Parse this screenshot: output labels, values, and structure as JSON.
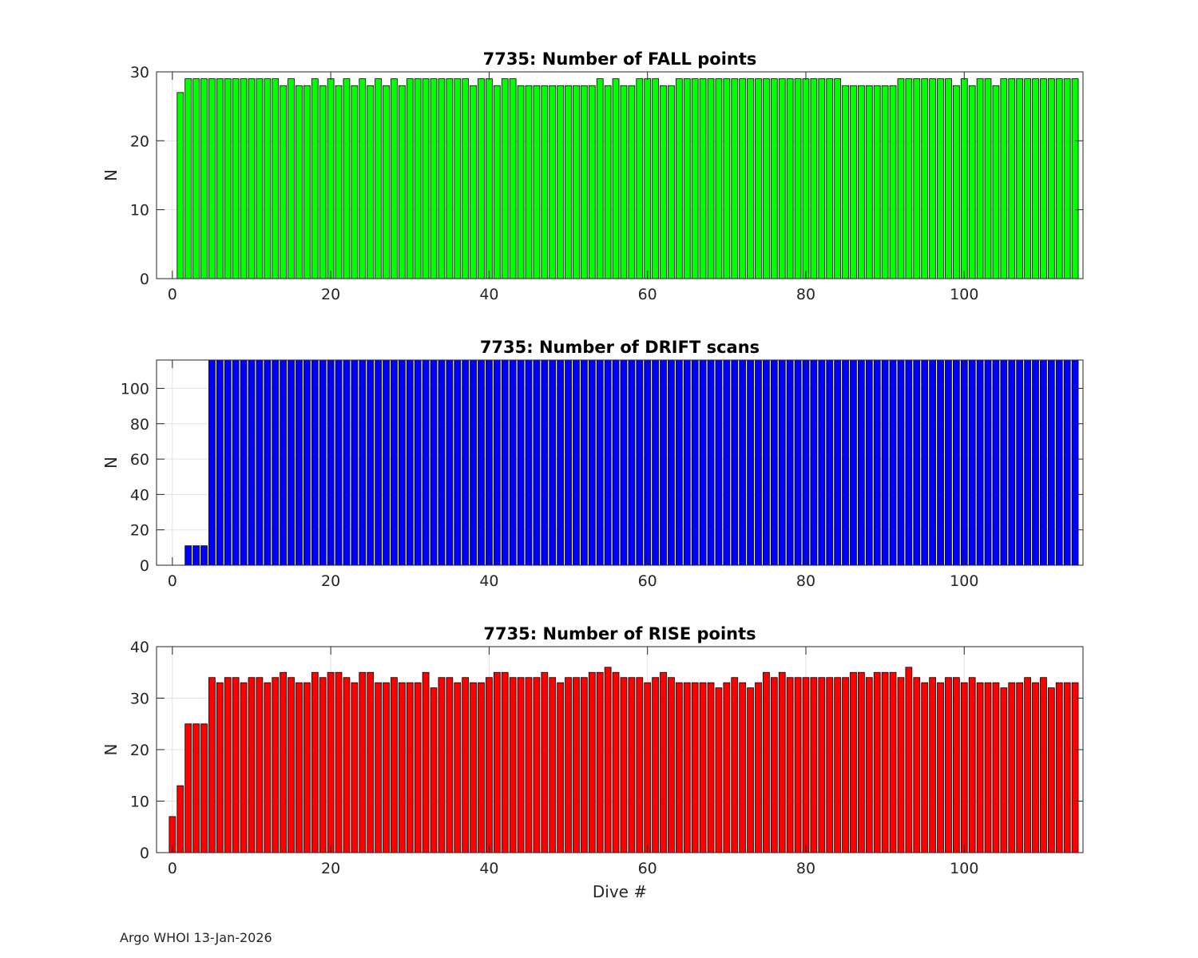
{
  "footer": "Argo WHOI 13-Jan-2026",
  "chart_data": [
    {
      "type": "bar",
      "title": "7735: Number of FALL points",
      "xlabel": "",
      "ylabel": "N",
      "color": "#00ff00",
      "xlim": [
        -2,
        115
      ],
      "ylim": [
        0,
        30
      ],
      "xticks": [
        0,
        20,
        40,
        60,
        80,
        100
      ],
      "yticks": [
        0,
        10,
        20,
        30
      ],
      "grid": true,
      "x": [
        1,
        2,
        3,
        4,
        5,
        6,
        7,
        8,
        9,
        10,
        11,
        12,
        13,
        14,
        15,
        16,
        17,
        18,
        19,
        20,
        21,
        22,
        23,
        24,
        25,
        26,
        27,
        28,
        29,
        30,
        31,
        32,
        33,
        34,
        35,
        36,
        37,
        38,
        39,
        40,
        41,
        42,
        43,
        44,
        45,
        46,
        47,
        48,
        49,
        50,
        51,
        52,
        53,
        54,
        55,
        56,
        57,
        58,
        59,
        60,
        61,
        62,
        63,
        64,
        65,
        66,
        67,
        68,
        69,
        70,
        71,
        72,
        73,
        74,
        75,
        76,
        77,
        78,
        79,
        80,
        81,
        82,
        83,
        84,
        85,
        86,
        87,
        88,
        89,
        90,
        91,
        92,
        93,
        94,
        95,
        96,
        97,
        98,
        99,
        100,
        101,
        102,
        103,
        104,
        105,
        106,
        107,
        108,
        109,
        110,
        111,
        112,
        113,
        114
      ],
      "values": [
        27,
        29,
        29,
        29,
        29,
        29,
        29,
        29,
        29,
        29,
        29,
        29,
        29,
        28,
        29,
        28,
        28,
        29,
        28,
        29,
        28,
        29,
        28,
        29,
        28,
        29,
        28,
        29,
        28,
        29,
        29,
        29,
        29,
        29,
        29,
        29,
        29,
        28,
        29,
        29,
        28,
        29,
        29,
        28,
        28,
        28,
        28,
        28,
        28,
        28,
        28,
        28,
        28,
        29,
        28,
        29,
        28,
        28,
        29,
        29,
        29,
        28,
        28,
        29,
        29,
        29,
        29,
        29,
        29,
        29,
        29,
        29,
        29,
        29,
        29,
        29,
        29,
        29,
        29,
        29,
        29,
        29,
        29,
        29,
        28,
        28,
        28,
        28,
        28,
        28,
        28,
        29,
        29,
        29,
        29,
        29,
        29,
        29,
        28,
        29,
        28,
        29,
        29,
        28,
        29,
        29,
        29,
        29,
        29,
        29,
        29,
        29,
        29,
        29
      ]
    },
    {
      "type": "bar",
      "title": "7735: Number of DRIFT scans",
      "xlabel": "",
      "ylabel": "N",
      "color": "#0000ff",
      "xlim": [
        -2,
        115
      ],
      "ylim": [
        0,
        116
      ],
      "xticks": [
        0,
        20,
        40,
        60,
        80,
        100
      ],
      "yticks": [
        0,
        20,
        40,
        60,
        80,
        100
      ],
      "grid": true,
      "x": [
        0,
        1,
        2,
        3,
        4,
        5,
        6,
        7,
        8,
        9,
        10,
        11,
        12,
        13,
        14,
        15,
        16,
        17,
        18,
        19,
        20,
        21,
        22,
        23,
        24,
        25,
        26,
        27,
        28,
        29,
        30,
        31,
        32,
        33,
        34,
        35,
        36,
        37,
        38,
        39,
        40,
        41,
        42,
        43,
        44,
        45,
        46,
        47,
        48,
        49,
        50,
        51,
        52,
        53,
        54,
        55,
        56,
        57,
        58,
        59,
        60,
        61,
        62,
        63,
        64,
        65,
        66,
        67,
        68,
        69,
        70,
        71,
        72,
        73,
        74,
        75,
        76,
        77,
        78,
        79,
        80,
        81,
        82,
        83,
        84,
        85,
        86,
        87,
        88,
        89,
        90,
        91,
        92,
        93,
        94,
        95,
        96,
        97,
        98,
        99,
        100,
        101,
        102,
        103,
        104,
        105,
        106,
        107,
        108,
        109,
        110,
        111,
        112,
        113,
        114
      ],
      "values": [
        0,
        0,
        11,
        11,
        11,
        116,
        116,
        116,
        116,
        116,
        116,
        116,
        116,
        116,
        116,
        116,
        116,
        116,
        116,
        116,
        116,
        116,
        116,
        116,
        116,
        116,
        116,
        116,
        116,
        116,
        116,
        116,
        116,
        116,
        116,
        116,
        116,
        116,
        116,
        116,
        116,
        116,
        116,
        116,
        116,
        116,
        116,
        116,
        116,
        116,
        116,
        116,
        116,
        116,
        116,
        116,
        116,
        116,
        116,
        116,
        116,
        116,
        116,
        116,
        116,
        116,
        116,
        116,
        116,
        116,
        116,
        116,
        116,
        116,
        116,
        116,
        116,
        116,
        116,
        116,
        116,
        116,
        116,
        116,
        116,
        116,
        116,
        116,
        116,
        116,
        116,
        116,
        116,
        116,
        116,
        116,
        116,
        116,
        116,
        116,
        116,
        116,
        116,
        116,
        116,
        116,
        116,
        116,
        116,
        116,
        116,
        116,
        116,
        116,
        116
      ]
    },
    {
      "type": "bar",
      "title": "7735: Number of RISE points",
      "xlabel": "Dive #",
      "ylabel": "N",
      "color": "#ff0000",
      "xlim": [
        -2,
        115
      ],
      "ylim": [
        0,
        40
      ],
      "xticks": [
        0,
        20,
        40,
        60,
        80,
        100
      ],
      "yticks": [
        0,
        10,
        20,
        30,
        40
      ],
      "grid": true,
      "x": [
        0,
        1,
        2,
        3,
        4,
        5,
        6,
        7,
        8,
        9,
        10,
        11,
        12,
        13,
        14,
        15,
        16,
        17,
        18,
        19,
        20,
        21,
        22,
        23,
        24,
        25,
        26,
        27,
        28,
        29,
        30,
        31,
        32,
        33,
        34,
        35,
        36,
        37,
        38,
        39,
        40,
        41,
        42,
        43,
        44,
        45,
        46,
        47,
        48,
        49,
        50,
        51,
        52,
        53,
        54,
        55,
        56,
        57,
        58,
        59,
        60,
        61,
        62,
        63,
        64,
        65,
        66,
        67,
        68,
        69,
        70,
        71,
        72,
        73,
        74,
        75,
        76,
        77,
        78,
        79,
        80,
        81,
        82,
        83,
        84,
        85,
        86,
        87,
        88,
        89,
        90,
        91,
        92,
        93,
        94,
        95,
        96,
        97,
        98,
        99,
        100,
        101,
        102,
        103,
        104,
        105,
        106,
        107,
        108,
        109,
        110,
        111,
        112,
        113,
        114
      ],
      "values": [
        7,
        13,
        25,
        25,
        25,
        34,
        33,
        34,
        34,
        33,
        34,
        34,
        33,
        34,
        35,
        34,
        33,
        33,
        35,
        34,
        35,
        35,
        34,
        33,
        35,
        35,
        33,
        33,
        34,
        33,
        33,
        33,
        35,
        32,
        34,
        34,
        33,
        34,
        33,
        33,
        34,
        35,
        35,
        34,
        34,
        34,
        34,
        35,
        34,
        33,
        34,
        34,
        34,
        35,
        35,
        36,
        35,
        34,
        34,
        34,
        33,
        34,
        35,
        34,
        33,
        33,
        33,
        33,
        33,
        32,
        33,
        34,
        33,
        32,
        33,
        35,
        34,
        35,
        34,
        34,
        34,
        34,
        34,
        34,
        34,
        34,
        35,
        35,
        34,
        35,
        35,
        35,
        34,
        36,
        34,
        33,
        34,
        33,
        34,
        34,
        33,
        34,
        33,
        33,
        33,
        32,
        33,
        33,
        34,
        33,
        34,
        32,
        33,
        33,
        33
      ]
    }
  ]
}
